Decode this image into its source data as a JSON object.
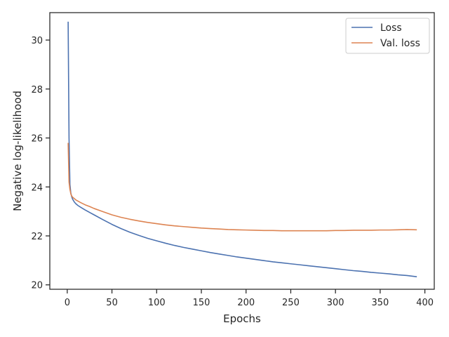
{
  "chart_data": {
    "type": "line",
    "title": "",
    "xlabel": "Epochs",
    "ylabel": "Negative log-likelihood",
    "xlim": [
      -19.5,
      410.5
    ],
    "ylim": [
      19.82,
      31.12
    ],
    "xticks": [
      0,
      50,
      100,
      150,
      200,
      250,
      300,
      350,
      400
    ],
    "yticks": [
      20,
      22,
      24,
      26,
      28,
      30
    ],
    "grid": false,
    "legend_position": "top-right",
    "series": [
      {
        "name": "Loss",
        "color": "#4c72b0",
        "x": [
          1,
          2,
          3,
          4,
          5,
          6,
          8,
          10,
          12,
          15,
          20,
          25,
          30,
          40,
          50,
          60,
          70,
          80,
          90,
          100,
          110,
          120,
          130,
          140,
          150,
          160,
          170,
          180,
          190,
          200,
          210,
          220,
          230,
          240,
          250,
          260,
          270,
          280,
          290,
          300,
          310,
          320,
          330,
          340,
          350,
          360,
          370,
          380,
          391
        ],
        "y": [
          30.75,
          26.0,
          24.1,
          23.75,
          23.6,
          23.5,
          23.38,
          23.3,
          23.24,
          23.17,
          23.06,
          22.96,
          22.86,
          22.66,
          22.47,
          22.3,
          22.15,
          22.02,
          21.9,
          21.8,
          21.7,
          21.61,
          21.53,
          21.46,
          21.39,
          21.32,
          21.26,
          21.2,
          21.14,
          21.09,
          21.04,
          20.99,
          20.94,
          20.9,
          20.86,
          20.82,
          20.78,
          20.74,
          20.7,
          20.66,
          20.62,
          20.58,
          20.55,
          20.51,
          20.48,
          20.45,
          20.41,
          20.38,
          20.33
        ]
      },
      {
        "name": "Val. loss",
        "color": "#dd8452",
        "x": [
          1,
          2,
          3,
          4,
          5,
          6,
          8,
          10,
          12,
          15,
          20,
          25,
          30,
          40,
          50,
          60,
          70,
          80,
          90,
          100,
          110,
          120,
          130,
          140,
          150,
          160,
          170,
          180,
          190,
          200,
          210,
          220,
          230,
          240,
          250,
          260,
          270,
          280,
          290,
          300,
          310,
          320,
          330,
          340,
          350,
          360,
          370,
          380,
          391
        ],
        "y": [
          25.8,
          24.2,
          23.9,
          23.72,
          23.63,
          23.58,
          23.52,
          23.46,
          23.42,
          23.36,
          23.27,
          23.2,
          23.12,
          22.99,
          22.86,
          22.76,
          22.68,
          22.61,
          22.55,
          22.5,
          22.45,
          22.41,
          22.38,
          22.35,
          22.32,
          22.3,
          22.28,
          22.26,
          22.25,
          22.24,
          22.23,
          22.22,
          22.22,
          22.21,
          22.21,
          22.21,
          22.21,
          22.21,
          22.21,
          22.22,
          22.22,
          22.23,
          22.23,
          22.23,
          22.24,
          22.24,
          22.25,
          22.26,
          22.25
        ]
      }
    ]
  }
}
